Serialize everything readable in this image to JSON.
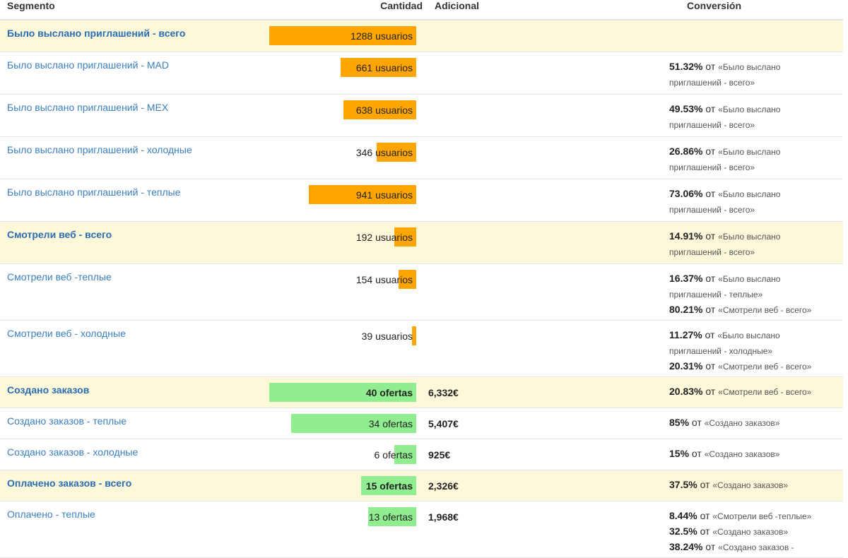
{
  "headers": {
    "segment": "Segmento",
    "quantity": "Cantidad",
    "additional": "Adicional",
    "conversion": "Conversión"
  },
  "colors": {
    "orange": "#ffa500",
    "green": "#90ee90",
    "highlight": "#fdf8da",
    "link": "#3a7fc0"
  },
  "rows": [
    {
      "segment": "Было выслано приглашений - всего",
      "highlight": true,
      "qty": "1288 usuarios",
      "bar": "orange",
      "bar_fraction": 1.0,
      "additional": "",
      "conv": [],
      "h": 45
    },
    {
      "segment": "Было выслано приглашений - MAD",
      "highlight": false,
      "qty": "661 usuarios",
      "bar": "orange",
      "bar_fraction": 0.513,
      "additional": "",
      "conv": [
        {
          "pct": "51.32%",
          "of": " от ",
          "ref": "«Было выслано приглашений - всего»"
        }
      ],
      "h": 60
    },
    {
      "segment": "Было выслано приглашений - MEX",
      "highlight": false,
      "qty": "638 usuarios",
      "bar": "orange",
      "bar_fraction": 0.495,
      "additional": "",
      "conv": [
        {
          "pct": "49.53%",
          "of": " от ",
          "ref": "«Было выслано приглашений - всего»"
        }
      ],
      "h": 60
    },
    {
      "segment": "Было выслано приглашений - холодные",
      "highlight": false,
      "qty": "346 usuarios",
      "bar": "orange",
      "bar_fraction": 0.269,
      "additional": "",
      "conv": [
        {
          "pct": "26.86%",
          "of": " от ",
          "ref": "«Было выслано приглашений - всего»"
        }
      ],
      "h": 60
    },
    {
      "segment": "Было выслано приглашений - теплые",
      "highlight": false,
      "qty": "941 usuarios",
      "bar": "orange",
      "bar_fraction": 0.731,
      "additional": "",
      "conv": [
        {
          "pct": "73.06%",
          "of": " от ",
          "ref": "«Было выслано приглашений - всего»"
        }
      ],
      "h": 60
    },
    {
      "segment": "Смотрели веб - всего",
      "highlight": true,
      "qty": "192 usuarios",
      "bar": "orange",
      "bar_fraction": 0.149,
      "additional": "",
      "conv": [
        {
          "pct": "14.91%",
          "of": " от ",
          "ref": "«Было выслано приглашений - всего»"
        }
      ],
      "h": 60
    },
    {
      "segment": "Смотрели веб -теплые",
      "highlight": false,
      "qty": "154 usuarios",
      "bar": "orange",
      "bar_fraction": 0.12,
      "additional": "",
      "conv": [
        {
          "pct": "16.37%",
          "of": " от ",
          "ref": "«Было выслано приглашений - теплые»"
        },
        {
          "pct": "80.21%",
          "of": " от ",
          "ref": "«Смотрели веб - всего»"
        }
      ],
      "h": 80
    },
    {
      "segment": "Смотрели веб - холодные",
      "highlight": false,
      "qty": "39 usuarios",
      "bar": "orange",
      "bar_fraction": 0.03,
      "additional": "",
      "conv": [
        {
          "pct": "11.27%",
          "of": " от ",
          "ref": "«Было выслано приглашений - холодные»"
        },
        {
          "pct": "20.31%",
          "of": " от ",
          "ref": "«Смотрели веб - всего»"
        }
      ],
      "h": 80
    },
    {
      "segment": "Создано заказов",
      "highlight": true,
      "qty": "40 ofertas",
      "bar": "green",
      "bar_fraction": 1.0,
      "additional": "6,332€",
      "conv": [
        {
          "pct": "20.83%",
          "of": " от ",
          "ref": "«Смотрели веб - всего»"
        }
      ],
      "h": 44
    },
    {
      "segment": "Создано заказов - теплые",
      "highlight": false,
      "qty": "34 ofertas",
      "bar": "green",
      "bar_fraction": 0.85,
      "additional": "5,407€",
      "conv": [
        {
          "pct": "85%",
          "of": " от ",
          "ref": "«Создано заказов»"
        }
      ],
      "h": 44
    },
    {
      "segment": "Создано заказов - холодные",
      "highlight": false,
      "qty": "6 ofertas",
      "bar": "green",
      "bar_fraction": 0.15,
      "additional": "925€",
      "conv": [
        {
          "pct": "15%",
          "of": " от ",
          "ref": "«Создано заказов»"
        }
      ],
      "h": 44
    },
    {
      "segment": "Оплачено заказов - всего",
      "highlight": true,
      "qty": "15 ofertas",
      "bar": "green",
      "bar_fraction": 0.375,
      "additional": "2,326€",
      "conv": [
        {
          "pct": "37.5%",
          "of": " от ",
          "ref": "«Создано заказов»"
        }
      ],
      "h": 44
    },
    {
      "segment": "Оплачено - теплые",
      "highlight": false,
      "qty": "13 ofertas",
      "bar": "green",
      "bar_fraction": 0.325,
      "additional": "1,968€",
      "conv": [
        {
          "pct": "8.44%",
          "of": " от ",
          "ref": "«Смотрели веб -теплые»"
        },
        {
          "pct": "32.5%",
          "of": " от ",
          "ref": "«Создано заказов»"
        },
        {
          "pct": "38.24%",
          "of": " от ",
          "ref": "«Создано заказов -"
        }
      ],
      "h": 80
    }
  ]
}
